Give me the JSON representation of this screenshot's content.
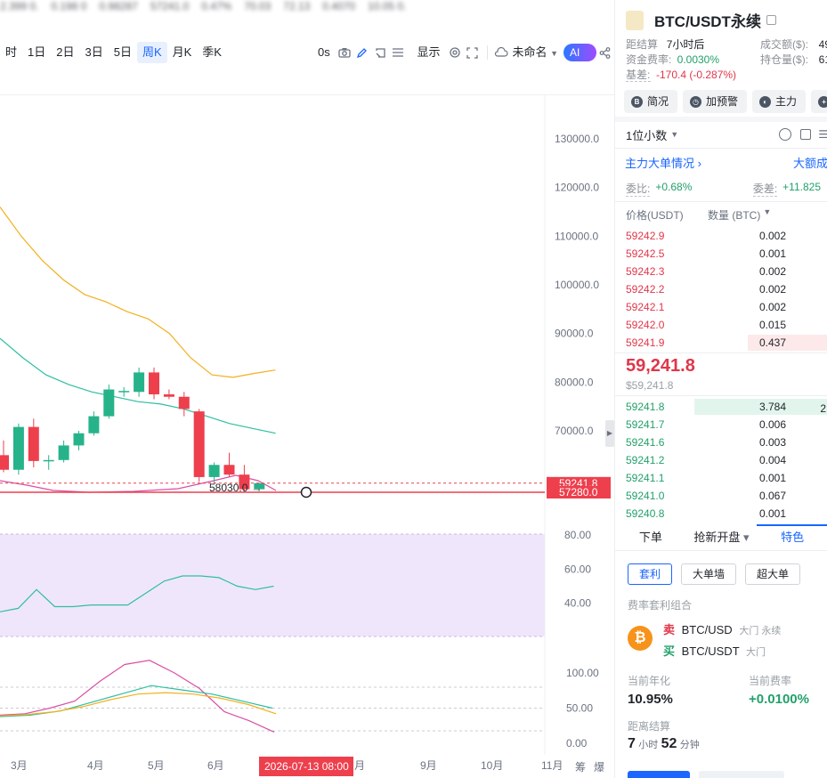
{
  "ticker_strip": [
    "2.399 0.",
    "0.198 0",
    "0.98287",
    "57241.0",
    "0.47%",
    "70.03",
    "72.13",
    "0.4070",
    "10.05 0."
  ],
  "toolbar": {
    "intervals": [
      "时",
      "1日",
      "2日",
      "3日",
      "5日",
      "周K",
      "月K",
      "季K"
    ],
    "active_interval": "周K",
    "zero_s": "0s",
    "display_label": "显示",
    "unnamed_label": "未命名",
    "ai_label": "AI解读"
  },
  "price_axis": [
    "130000.0",
    "120000.0",
    "110000.0",
    "100000.0",
    "90000.0",
    "80000.0",
    "70000.0"
  ],
  "price_tags": {
    "last": "59241.8",
    "line": "57280.0",
    "low_mark": "58030.0"
  },
  "indicator1_axis": [
    "80.00",
    "60.00",
    "40.00"
  ],
  "indicator2_axis": [
    "100.00",
    "50.00",
    "0.00"
  ],
  "time_axis": [
    "3月",
    "4月",
    "5月",
    "6月",
    "9月",
    "10月",
    "11月"
  ],
  "time_cursor": "2026-07-13 08:00",
  "time_cursor_trail": "月",
  "corner_labels": [
    "筹",
    "爆"
  ],
  "colors": {
    "up": "#26b38a",
    "down": "#ee3f4d",
    "ma_orange": "#f2b01e",
    "ma_teal": "#2dbfa2",
    "ma_pink": "#d94fa6",
    "accent": "#1a66ff"
  },
  "candles": [
    {
      "o": 65000,
      "h": 68000,
      "l": 61500,
      "c": 62000
    },
    {
      "o": 62000,
      "h": 71500,
      "l": 61000,
      "c": 70800
    },
    {
      "o": 70800,
      "h": 72500,
      "l": 62500,
      "c": 63800
    },
    {
      "o": 63800,
      "h": 65000,
      "l": 62000,
      "c": 64000
    },
    {
      "o": 64000,
      "h": 68000,
      "l": 63500,
      "c": 67000
    },
    {
      "o": 67000,
      "h": 70000,
      "l": 66000,
      "c": 69500
    },
    {
      "o": 69500,
      "h": 74000,
      "l": 69000,
      "c": 73000
    },
    {
      "o": 73000,
      "h": 79500,
      "l": 72500,
      "c": 78500
    },
    {
      "o": 78000,
      "h": 79000,
      "l": 77000,
      "c": 78200
    },
    {
      "o": 78000,
      "h": 83000,
      "l": 77000,
      "c": 82000
    },
    {
      "o": 82000,
      "h": 83000,
      "l": 76500,
      "c": 77500
    },
    {
      "o": 77500,
      "h": 78500,
      "l": 76500,
      "c": 77000
    },
    {
      "o": 77000,
      "h": 78000,
      "l": 73000,
      "c": 74500
    },
    {
      "o": 74000,
      "h": 74500,
      "l": 59500,
      "c": 60500
    },
    {
      "o": 60500,
      "h": 63500,
      "l": 59000,
      "c": 63000
    },
    {
      "o": 63000,
      "h": 65500,
      "l": 60500,
      "c": 61000
    },
    {
      "o": 61000,
      "h": 63000,
      "l": 57500,
      "c": 58000
    },
    {
      "o": 58000,
      "h": 59242,
      "l": 57600,
      "c": 59241.8
    }
  ],
  "ma_orange": [
    116000,
    110000,
    105000,
    101000,
    98000,
    96500,
    94500,
    93000,
    90000,
    85000,
    81500,
    81000,
    81800,
    82500
  ],
  "ma_teal": [
    89000,
    85000,
    81500,
    79500,
    78000,
    77000,
    76000,
    75500,
    74500,
    73000,
    71500,
    70500,
    69500
  ],
  "ind1": [
    35,
    37,
    48,
    38,
    38,
    39,
    39,
    39,
    46,
    53,
    56,
    56,
    55,
    50,
    48,
    50
  ],
  "ind2_pink": [
    40,
    42,
    50,
    60,
    88,
    112,
    118,
    100,
    78,
    45,
    32,
    16
  ],
  "ind2_teal": [
    38,
    40,
    46,
    58,
    70,
    82,
    76,
    70,
    60,
    50
  ],
  "ind2_orange": [
    39,
    41,
    45,
    52,
    62,
    70,
    72,
    70,
    64,
    55,
    42
  ],
  "right_panel": {
    "title": "BTC/USDT永续",
    "kv": [
      {
        "k": "距结算",
        "v": "7小时后",
        "k2": "成交额($):",
        "v2": "49"
      },
      {
        "k": "资金费率:",
        "v": "0.0030%",
        "k2": "持仓量($):",
        "v2": "61"
      },
      {
        "k": "基差:",
        "v": "-170.4 (-0.287%)",
        "k2": "",
        "v2": ""
      }
    ],
    "buttons": [
      "简况",
      "加预警",
      "主力",
      ""
    ],
    "decimals": "1位小数",
    "big_order_link": "主力大单情况",
    "big_order_right": "大额成",
    "ratio_k": "委比:",
    "ratio_v": "+0.68%",
    "diff_k": "委差:",
    "diff_v": "+11.825",
    "col_price": "价格(USDT)",
    "col_qty": "数量 (BTC)",
    "asks": [
      {
        "p": "59242.9",
        "q": "0.002",
        "depth": 0.0
      },
      {
        "p": "59242.5",
        "q": "0.001",
        "depth": 0.0
      },
      {
        "p": "59242.3",
        "q": "0.002",
        "depth": 0.0
      },
      {
        "p": "59242.2",
        "q": "0.002",
        "depth": 0.0
      },
      {
        "p": "59242.1",
        "q": "0.002",
        "depth": 0.0
      },
      {
        "p": "59242.0",
        "q": "0.015",
        "depth": 0.0
      },
      {
        "p": "59241.9",
        "q": "0.437",
        "depth": 0.6
      }
    ],
    "last_price": "59,241.8",
    "last_price_usd": "$59,241.8",
    "bids": [
      {
        "p": "59241.8",
        "q": "3.784",
        "depth": 1.0
      },
      {
        "p": "59241.7",
        "q": "0.006",
        "depth": 0.0
      },
      {
        "p": "59241.6",
        "q": "0.003",
        "depth": 0.0
      },
      {
        "p": "59241.2",
        "q": "0.004",
        "depth": 0.0
      },
      {
        "p": "59241.1",
        "q": "0.001",
        "depth": 0.0
      },
      {
        "p": "59241.0",
        "q": "0.067",
        "depth": 0.0
      },
      {
        "p": "59240.8",
        "q": "0.001",
        "depth": 0.0
      }
    ],
    "bid_extra": "2",
    "tabs": [
      "下单",
      "抢新开盘",
      "特色"
    ],
    "active_tab": "特色",
    "chips": [
      "套利",
      "大单墙",
      "超大单"
    ],
    "active_chip": "套利",
    "section_title": "费率套利组合",
    "pair_sell": {
      "side": "卖",
      "name": "BTC/USD",
      "sub": "大门 永续"
    },
    "pair_buy": {
      "side": "买",
      "name": "BTC/USDT",
      "sub": "大门"
    },
    "annual_k": "当前年化",
    "annual_v": "10.95%",
    "rate_k": "当前费率",
    "rate_v": "+0.0100%",
    "settle_k": "距离结算",
    "settle_h": "7",
    "settle_h_unit": "小时",
    "settle_m": "52",
    "settle_m_unit": "分钟"
  }
}
